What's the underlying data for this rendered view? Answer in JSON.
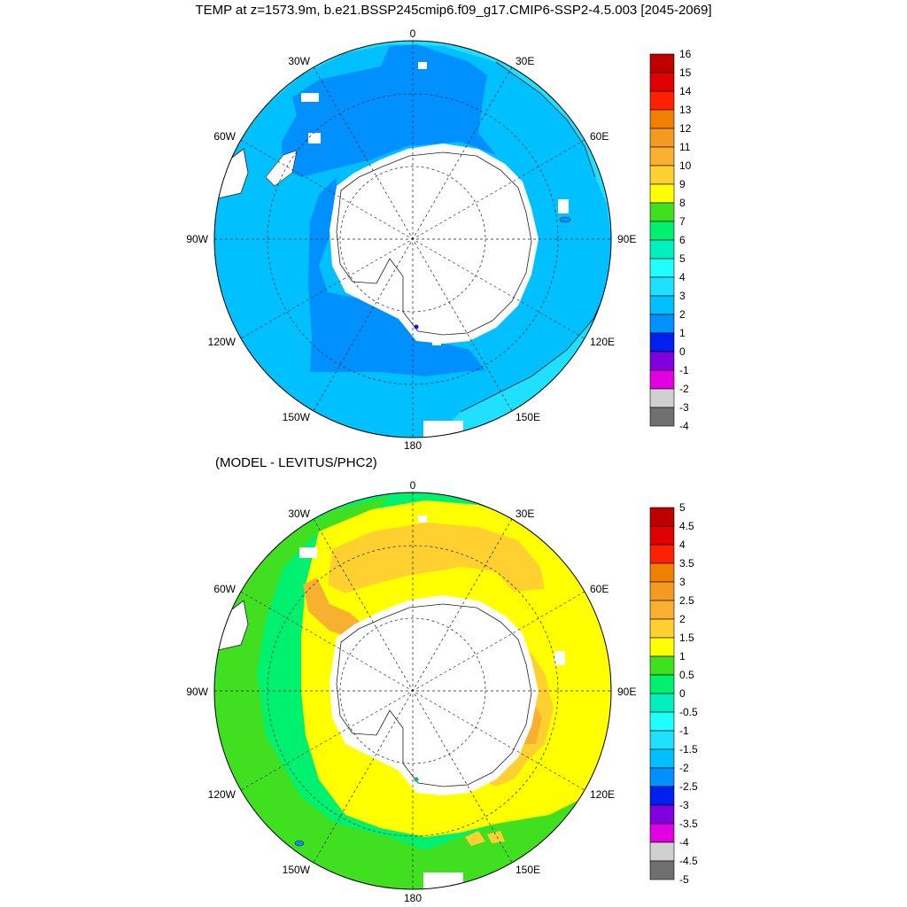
{
  "top_panel": {
    "title": "TEMP at z=1573.9m, b.e21.BSSP245cmip6.f09_g17.CMIP6-SSP2-4.5.003 [2045-2069]",
    "longitude_labels": [
      "0",
      "30E",
      "60E",
      "90E",
      "120E",
      "150E",
      "180",
      "150W",
      "120W",
      "90W",
      "60W",
      "30W"
    ],
    "colorbar": {
      "labels": [
        "16",
        "15",
        "14",
        "13",
        "12",
        "11",
        "10",
        "9",
        "8",
        "7",
        "6",
        "5",
        "4",
        "3",
        "2",
        "1",
        "0",
        "-1",
        "-2",
        "-3",
        "-4"
      ],
      "colors": [
        "#c00000",
        "#e00000",
        "#ff2000",
        "#f08000",
        "#f59a20",
        "#f8b030",
        "#ffd030",
        "#ffff00",
        "#40e020",
        "#00f070",
        "#00f0c0",
        "#20ffff",
        "#20e0ff",
        "#00c0ff",
        "#0090ff",
        "#0020f0",
        "#8000e0",
        "#e000e0",
        "#d0d0d0",
        "#707070"
      ]
    }
  },
  "bottom_panel": {
    "title": "(MODEL - LEVITUS/PHC2)",
    "longitude_labels": [
      "0",
      "30E",
      "60E",
      "90E",
      "120E",
      "150E",
      "180",
      "150W",
      "120W",
      "90W",
      "60W",
      "30W"
    ],
    "colorbar": {
      "labels": [
        "5",
        "4.5",
        "4",
        "3.5",
        "3",
        "2.5",
        "2",
        "1.5",
        "1",
        "0.5",
        "0",
        "-0.5",
        "-1",
        "-1.5",
        "-2",
        "-2.5",
        "-3",
        "-3.5",
        "-4",
        "-4.5",
        "-5"
      ],
      "colors": [
        "#c00000",
        "#e00000",
        "#ff2000",
        "#f08000",
        "#f59a20",
        "#f8b030",
        "#ffd030",
        "#ffff00",
        "#40e020",
        "#00f070",
        "#00f0c0",
        "#20ffff",
        "#20e0ff",
        "#00c0ff",
        "#0090ff",
        "#0020f0",
        "#8000e0",
        "#e000e0",
        "#d0d0d0",
        "#707070"
      ]
    }
  }
}
